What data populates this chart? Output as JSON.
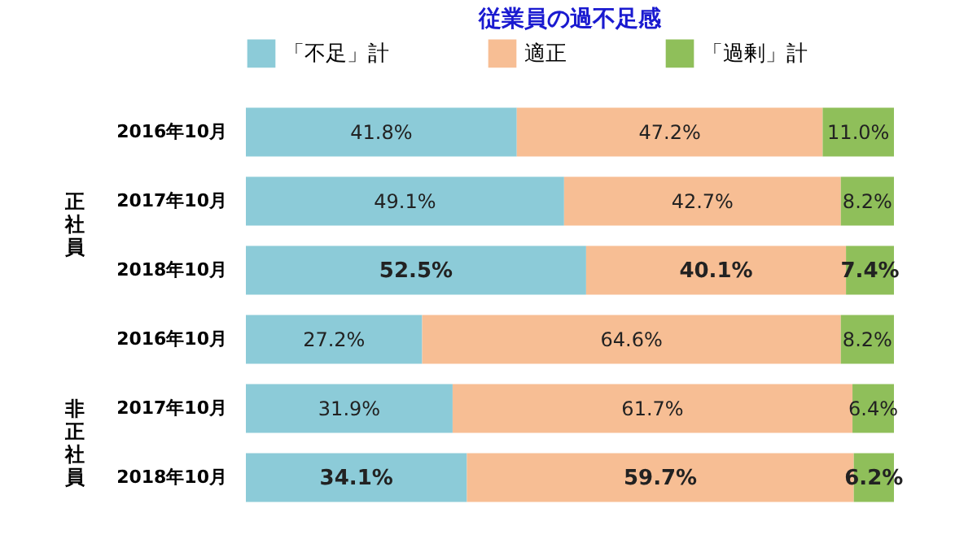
{
  "chart_data": {
    "type": "bar",
    "orientation": "horizontal",
    "stacked": true,
    "title": "従業員の過不足感",
    "categories": [
      "2016年10月",
      "2017年10月",
      "2018年10月",
      "2016年10月",
      "2017年10月",
      "2018年10月"
    ],
    "series": [
      {
        "name": "「不足」計",
        "color": "#8ccbd8",
        "values": [
          41.8,
          49.1,
          52.5,
          27.2,
          31.9,
          34.1
        ],
        "value_labels": [
          "41.8%",
          "49.1%",
          "52.5%",
          "27.2%",
          "31.9%",
          "34.1%"
        ]
      },
      {
        "name": "適正",
        "color": "#f7be94",
        "values": [
          47.2,
          42.7,
          40.1,
          64.6,
          61.7,
          59.7
        ],
        "value_labels": [
          "47.2%",
          "42.7%",
          "40.1%",
          "64.6%",
          "61.7%",
          "59.7%"
        ]
      },
      {
        "name": "「過剰」計",
        "color": "#8fbf5a",
        "values": [
          11.0,
          8.2,
          7.4,
          8.2,
          6.4,
          6.2
        ],
        "value_labels": [
          "11.0%",
          "8.2%",
          "7.4%",
          "8.2%",
          "6.4%",
          "6.2%"
        ]
      }
    ],
    "tick_labels": "y",
    "legend": "top",
    "annotations": [
      "正社員",
      "非正社員"
    ]
  }
}
